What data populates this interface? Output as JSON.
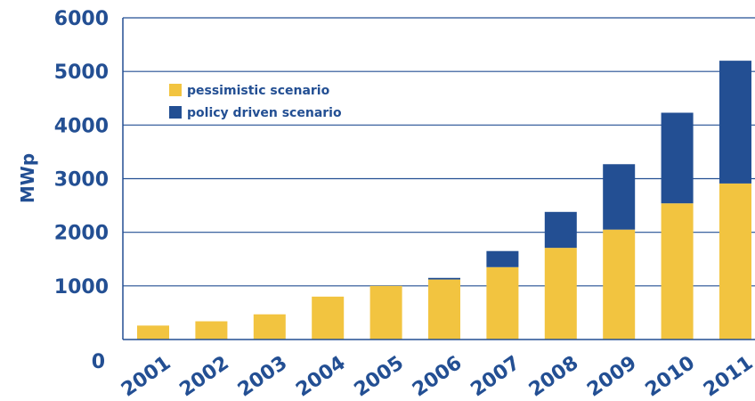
{
  "chart_data": {
    "type": "bar",
    "stacked": true,
    "title": "",
    "xlabel": "",
    "ylabel": "MWp",
    "ylim": [
      0,
      6000
    ],
    "yticks": [
      0,
      1000,
      2000,
      3000,
      4000,
      5000,
      6000
    ],
    "grid": true,
    "legend_position": "top-left",
    "categories": [
      "2001",
      "2002",
      "2003",
      "2004",
      "2005",
      "2006",
      "2007",
      "2008",
      "2009",
      "2010",
      "2011"
    ],
    "series": [
      {
        "name": "pessimistic scenario",
        "color": "#f2c440",
        "values": [
          260,
          340,
          470,
          800,
          1000,
          1120,
          1350,
          1710,
          2050,
          2540,
          2910
        ]
      },
      {
        "name": "policy driven scenario",
        "color": "#234f93",
        "values": [
          0,
          0,
          0,
          0,
          0,
          30,
          300,
          670,
          1220,
          1690,
          2290
        ]
      }
    ],
    "axis_color": "#234f93",
    "grid_color": "#234f93"
  }
}
